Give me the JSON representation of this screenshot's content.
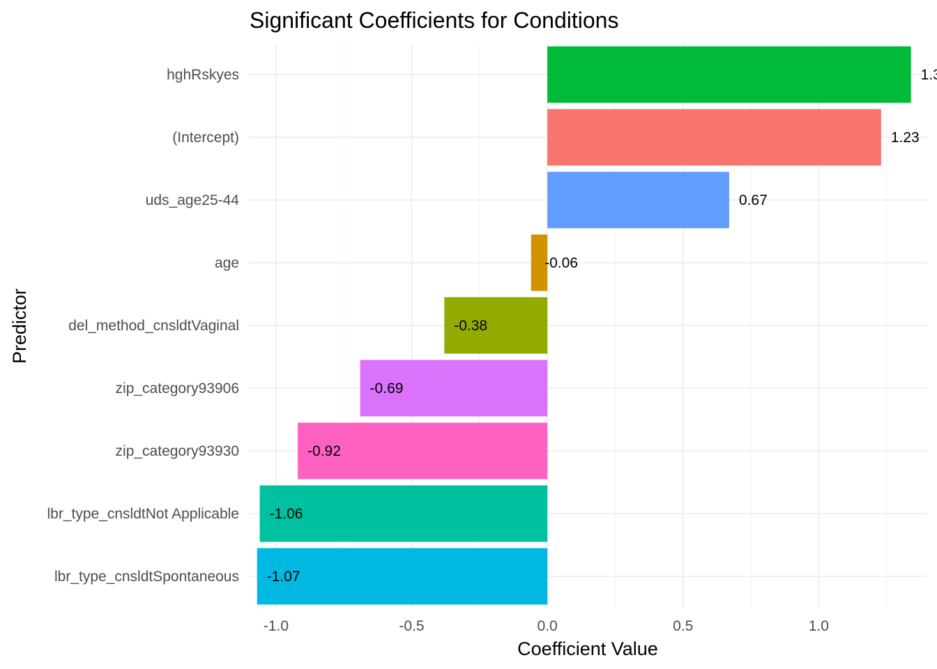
{
  "chart_data": {
    "type": "bar",
    "orientation": "horizontal",
    "title": "Significant Coefficients for Conditions",
    "xlabel": "Coefficient Value",
    "ylabel": "Predictor",
    "xlim": [
      -1.1,
      1.4
    ],
    "xticks": [
      -1.0,
      -0.5,
      0.0,
      0.5,
      1.0
    ],
    "xtick_labels": [
      "-1.0",
      "-0.5",
      "0.0",
      "0.5",
      "1.0"
    ],
    "grid": true,
    "legend": "none",
    "bars": [
      {
        "category": "hghRskyes",
        "value": 1.34,
        "label": "1.3",
        "color": "#00BA38"
      },
      {
        "category": "(Intercept)",
        "value": 1.23,
        "label": "1.23",
        "color": "#F8766D"
      },
      {
        "category": "uds_age25-44",
        "value": 0.67,
        "label": "0.67",
        "color": "#619CFF"
      },
      {
        "category": "age",
        "value": -0.06,
        "label": "-0.06",
        "color": "#D39200"
      },
      {
        "category": "del_method_cnsldtVaginal",
        "value": -0.38,
        "label": "-0.38",
        "color": "#93AA00"
      },
      {
        "category": "zip_category93906",
        "value": -0.69,
        "label": "-0.69",
        "color": "#DB72FB"
      },
      {
        "category": "zip_category93930",
        "value": -0.92,
        "label": "-0.92",
        "color": "#FF61C3"
      },
      {
        "category": "lbr_type_cnsldtNot Applicable",
        "value": -1.06,
        "label": "-1.06",
        "color": "#00C19F"
      },
      {
        "category": "lbr_type_cnsldtSpontaneous",
        "value": -1.07,
        "label": "-1.07",
        "color": "#00B9E3"
      }
    ]
  }
}
